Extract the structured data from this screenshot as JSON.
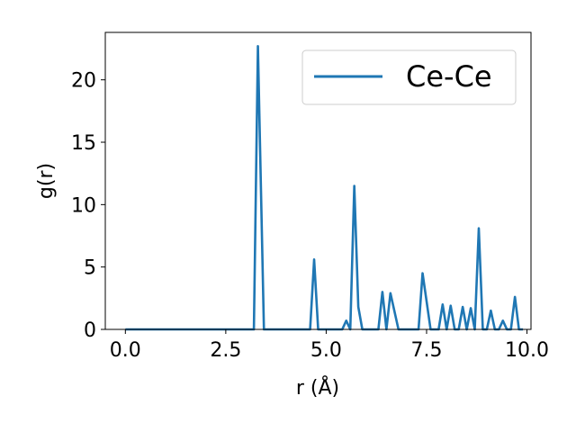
{
  "chart_data": {
    "type": "line",
    "xlabel": "r (Å)",
    "ylabel": "g(r)",
    "xlim": [
      -0.5,
      10.1
    ],
    "ylim": [
      0,
      23.8
    ],
    "xticks": [
      0.0,
      2.5,
      5.0,
      7.5,
      10.0
    ],
    "xtick_labels": [
      "0.0",
      "2.5",
      "5.0",
      "7.5",
      "10.0"
    ],
    "yticks": [
      0,
      5,
      10,
      15,
      20
    ],
    "ytick_labels": [
      "0",
      "5",
      "10",
      "15",
      "20"
    ],
    "grid": false,
    "legend_position": "top-right",
    "series": [
      {
        "name": "Ce-Ce",
        "color": "#1f77b4",
        "x": [
          0.0,
          3.2,
          3.3,
          3.45,
          4.6,
          4.7,
          4.8,
          5.4,
          5.5,
          5.6,
          5.7,
          5.8,
          5.9,
          6.3,
          6.4,
          6.5,
          6.6,
          6.8,
          7.3,
          7.4,
          7.6,
          7.8,
          7.9,
          8.0,
          8.1,
          8.2,
          8.3,
          8.4,
          8.5,
          8.6,
          8.7,
          8.8,
          8.9,
          9.0,
          9.1,
          9.2,
          9.3,
          9.4,
          9.5,
          9.6,
          9.7,
          9.8,
          9.9
        ],
        "y": [
          0.0,
          0.0,
          22.7,
          0.0,
          0.0,
          5.6,
          0.0,
          0.0,
          0.7,
          0.0,
          11.5,
          1.8,
          0.0,
          0.0,
          3.0,
          0.0,
          2.9,
          0.0,
          0.0,
          4.5,
          0.0,
          0.0,
          2.0,
          0.0,
          1.9,
          0.0,
          0.0,
          1.8,
          0.0,
          1.7,
          0.0,
          8.1,
          0.0,
          0.0,
          1.5,
          0.0,
          0.0,
          0.7,
          0.0,
          0.0,
          2.6,
          0.0,
          0.0
        ]
      }
    ]
  }
}
